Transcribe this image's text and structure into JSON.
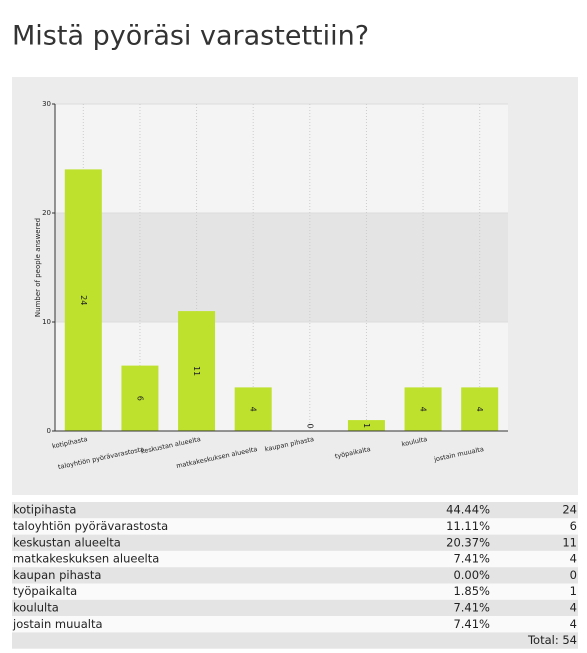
{
  "title": "Mistä pyöräsi varastettiin?",
  "chart_data": {
    "type": "bar",
    "y_label": "Number of people answered",
    "categories": [
      "kotipihasta",
      "taloyhtiön pyörävarastosta",
      "keskustan alueelta",
      "matkakeskuksen alueelta",
      "kaupan pihasta",
      "työpaikalta",
      "koululta",
      "jostain muualta"
    ],
    "values": [
      24,
      6,
      11,
      4,
      0,
      1,
      4,
      4
    ],
    "color": "#bde12d",
    "ylim": [
      0,
      30
    ],
    "yticks": [
      0,
      10,
      20,
      30
    ],
    "grid": true
  },
  "table": {
    "percents": [
      "44.44%",
      "11.11%",
      "20.37%",
      "7.41%",
      "0.00%",
      "1.85%",
      "7.41%",
      "7.41%"
    ],
    "total": "Total: 54"
  }
}
